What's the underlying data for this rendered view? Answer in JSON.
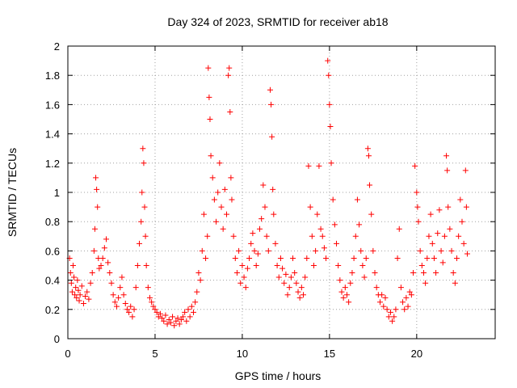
{
  "chart_data": {
    "type": "scatter",
    "title": "Day 324 of 2023, SRMTID for receiver ab18",
    "xlabel": "GPS time / hours",
    "ylabel": "SRMTID / TECUs",
    "xlim": [
      0,
      24.5
    ],
    "ylim": [
      0,
      2
    ],
    "xticks": [
      0,
      5,
      10,
      15,
      20
    ],
    "xtick_labels": [
      "0",
      "5",
      "10",
      "15",
      "20"
    ],
    "yticks": [
      0,
      0.2,
      0.4,
      0.6,
      0.8,
      1.0,
      1.2,
      1.4,
      1.6,
      1.8,
      2.0
    ],
    "ytick_labels": [
      "0",
      "0.2",
      "0.4",
      "0.6",
      "0.8",
      "1",
      "1.2",
      "1.4",
      "1.6",
      "1.8",
      "2"
    ],
    "grid": true,
    "marker": "+",
    "color": "#ff0000",
    "series": [
      {
        "name": "SRMTID",
        "points": [
          [
            0.1,
            0.55
          ],
          [
            0.15,
            0.45
          ],
          [
            0.2,
            0.38
          ],
          [
            0.25,
            0.32
          ],
          [
            0.3,
            0.5
          ],
          [
            0.35,
            0.42
          ],
          [
            0.4,
            0.3
          ],
          [
            0.45,
            0.35
          ],
          [
            0.5,
            0.28
          ],
          [
            0.55,
            0.4
          ],
          [
            0.6,
            0.33
          ],
          [
            0.65,
            0.26
          ],
          [
            0.7,
            0.3
          ],
          [
            0.8,
            0.36
          ],
          [
            0.9,
            0.24
          ],
          [
            1.0,
            0.29
          ],
          [
            1.1,
            0.32
          ],
          [
            1.2,
            0.27
          ],
          [
            1.3,
            0.38
          ],
          [
            1.4,
            0.45
          ],
          [
            1.5,
            0.6
          ],
          [
            1.55,
            0.75
          ],
          [
            1.6,
            1.1
          ],
          [
            1.65,
            1.02
          ],
          [
            1.7,
            0.9
          ],
          [
            1.75,
            0.55
          ],
          [
            1.8,
            0.48
          ],
          [
            1.9,
            0.5
          ],
          [
            2.0,
            0.55
          ],
          [
            2.1,
            0.62
          ],
          [
            2.2,
            0.68
          ],
          [
            2.3,
            0.52
          ],
          [
            2.4,
            0.45
          ],
          [
            2.5,
            0.38
          ],
          [
            2.6,
            0.3
          ],
          [
            2.7,
            0.25
          ],
          [
            2.8,
            0.22
          ],
          [
            2.9,
            0.28
          ],
          [
            3.0,
            0.35
          ],
          [
            3.1,
            0.42
          ],
          [
            3.2,
            0.3
          ],
          [
            3.3,
            0.24
          ],
          [
            3.4,
            0.2
          ],
          [
            3.5,
            0.18
          ],
          [
            3.6,
            0.22
          ],
          [
            3.7,
            0.15
          ],
          [
            3.8,
            0.2
          ],
          [
            3.9,
            0.35
          ],
          [
            4.0,
            0.5
          ],
          [
            4.1,
            0.65
          ],
          [
            4.2,
            0.8
          ],
          [
            4.25,
            1.0
          ],
          [
            4.3,
            1.3
          ],
          [
            4.35,
            1.2
          ],
          [
            4.4,
            0.9
          ],
          [
            4.45,
            0.7
          ],
          [
            4.5,
            0.5
          ],
          [
            4.6,
            0.35
          ],
          [
            4.7,
            0.28
          ],
          [
            4.8,
            0.25
          ],
          [
            4.9,
            0.22
          ],
          [
            5.0,
            0.2
          ],
          [
            5.1,
            0.18
          ],
          [
            5.2,
            0.15
          ],
          [
            5.3,
            0.17
          ],
          [
            5.4,
            0.14
          ],
          [
            5.5,
            0.12
          ],
          [
            5.6,
            0.16
          ],
          [
            5.7,
            0.1
          ],
          [
            5.8,
            0.13
          ],
          [
            5.9,
            0.11
          ],
          [
            6.0,
            0.15
          ],
          [
            6.1,
            0.09
          ],
          [
            6.2,
            0.12
          ],
          [
            6.3,
            0.14
          ],
          [
            6.4,
            0.1
          ],
          [
            6.5,
            0.13
          ],
          [
            6.6,
            0.15
          ],
          [
            6.7,
            0.18
          ],
          [
            6.8,
            0.12
          ],
          [
            6.9,
            0.2
          ],
          [
            7.0,
            0.15
          ],
          [
            7.1,
            0.22
          ],
          [
            7.2,
            0.18
          ],
          [
            7.3,
            0.25
          ],
          [
            7.4,
            0.32
          ],
          [
            7.5,
            0.45
          ],
          [
            7.6,
            0.4
          ],
          [
            7.7,
            0.6
          ],
          [
            7.8,
            0.85
          ],
          [
            7.9,
            0.55
          ],
          [
            8.0,
            0.7
          ],
          [
            8.05,
            1.85
          ],
          [
            8.1,
            1.65
          ],
          [
            8.15,
            1.5
          ],
          [
            8.2,
            1.25
          ],
          [
            8.3,
            1.1
          ],
          [
            8.4,
            0.95
          ],
          [
            8.5,
            0.8
          ],
          [
            8.6,
            1.0
          ],
          [
            8.7,
            1.2
          ],
          [
            8.8,
            0.9
          ],
          [
            8.9,
            0.75
          ],
          [
            9.0,
            1.02
          ],
          [
            9.1,
            0.85
          ],
          [
            9.2,
            1.8
          ],
          [
            9.25,
            1.85
          ],
          [
            9.3,
            1.55
          ],
          [
            9.35,
            1.1
          ],
          [
            9.4,
            0.95
          ],
          [
            9.5,
            0.7
          ],
          [
            9.6,
            0.55
          ],
          [
            9.7,
            0.45
          ],
          [
            9.8,
            0.6
          ],
          [
            9.9,
            0.38
          ],
          [
            10.0,
            0.5
          ],
          [
            10.1,
            0.42
          ],
          [
            10.2,
            0.35
          ],
          [
            10.3,
            0.48
          ],
          [
            10.4,
            0.55
          ],
          [
            10.5,
            0.65
          ],
          [
            10.6,
            0.72
          ],
          [
            10.7,
            0.6
          ],
          [
            10.8,
            0.5
          ],
          [
            10.9,
            0.58
          ],
          [
            11.0,
            0.75
          ],
          [
            11.1,
            0.82
          ],
          [
            11.2,
            1.05
          ],
          [
            11.3,
            0.9
          ],
          [
            11.4,
            0.7
          ],
          [
            11.5,
            0.6
          ],
          [
            11.6,
            1.7
          ],
          [
            11.65,
            1.6
          ],
          [
            11.7,
            1.38
          ],
          [
            11.75,
            1.02
          ],
          [
            11.8,
            0.85
          ],
          [
            11.9,
            0.65
          ],
          [
            12.0,
            0.5
          ],
          [
            12.1,
            0.42
          ],
          [
            12.2,
            0.55
          ],
          [
            12.3,
            0.48
          ],
          [
            12.4,
            0.38
          ],
          [
            12.5,
            0.44
          ],
          [
            12.6,
            0.3
          ],
          [
            12.7,
            0.35
          ],
          [
            12.8,
            0.42
          ],
          [
            12.9,
            0.55
          ],
          [
            13.0,
            0.45
          ],
          [
            13.1,
            0.38
          ],
          [
            13.2,
            0.32
          ],
          [
            13.3,
            0.28
          ],
          [
            13.4,
            0.35
          ],
          [
            13.5,
            0.3
          ],
          [
            13.6,
            0.42
          ],
          [
            13.7,
            0.55
          ],
          [
            13.8,
            1.18
          ],
          [
            13.9,
            0.9
          ],
          [
            14.0,
            0.7
          ],
          [
            14.1,
            0.5
          ],
          [
            14.2,
            0.6
          ],
          [
            14.3,
            0.85
          ],
          [
            14.4,
            1.18
          ],
          [
            14.5,
            0.75
          ],
          [
            14.6,
            0.7
          ],
          [
            14.7,
            0.62
          ],
          [
            14.8,
            0.55
          ],
          [
            14.9,
            1.9
          ],
          [
            14.95,
            1.8
          ],
          [
            15.0,
            1.6
          ],
          [
            15.05,
            1.45
          ],
          [
            15.1,
            1.2
          ],
          [
            15.2,
            0.95
          ],
          [
            15.3,
            0.78
          ],
          [
            15.4,
            0.65
          ],
          [
            15.5,
            0.5
          ],
          [
            15.6,
            0.4
          ],
          [
            15.7,
            0.32
          ],
          [
            15.8,
            0.28
          ],
          [
            15.9,
            0.35
          ],
          [
            16.0,
            0.3
          ],
          [
            16.1,
            0.25
          ],
          [
            16.2,
            0.38
          ],
          [
            16.3,
            0.45
          ],
          [
            16.4,
            0.55
          ],
          [
            16.5,
            0.7
          ],
          [
            16.6,
            0.95
          ],
          [
            16.7,
            0.78
          ],
          [
            16.8,
            0.6
          ],
          [
            16.9,
            0.5
          ],
          [
            17.0,
            0.42
          ],
          [
            17.1,
            0.55
          ],
          [
            17.2,
            1.3
          ],
          [
            17.25,
            1.25
          ],
          [
            17.3,
            1.05
          ],
          [
            17.4,
            0.85
          ],
          [
            17.5,
            0.6
          ],
          [
            17.6,
            0.45
          ],
          [
            17.7,
            0.35
          ],
          [
            17.8,
            0.3
          ],
          [
            17.9,
            0.25
          ],
          [
            18.0,
            0.3
          ],
          [
            18.1,
            0.22
          ],
          [
            18.2,
            0.28
          ],
          [
            18.3,
            0.2
          ],
          [
            18.4,
            0.15
          ],
          [
            18.5,
            0.18
          ],
          [
            18.6,
            0.12
          ],
          [
            18.7,
            0.15
          ],
          [
            18.8,
            0.2
          ],
          [
            18.9,
            0.55
          ],
          [
            19.0,
            0.75
          ],
          [
            19.1,
            0.35
          ],
          [
            19.2,
            0.25
          ],
          [
            19.3,
            0.2
          ],
          [
            19.4,
            0.28
          ],
          [
            19.5,
            0.22
          ],
          [
            19.6,
            0.32
          ],
          [
            19.7,
            0.3
          ],
          [
            19.8,
            0.45
          ],
          [
            19.9,
            1.18
          ],
          [
            20.0,
            1.0
          ],
          [
            20.05,
            0.9
          ],
          [
            20.1,
            0.8
          ],
          [
            20.2,
            0.6
          ],
          [
            20.3,
            0.5
          ],
          [
            20.4,
            0.45
          ],
          [
            20.5,
            0.38
          ],
          [
            20.6,
            0.55
          ],
          [
            20.7,
            0.7
          ],
          [
            20.8,
            0.85
          ],
          [
            20.9,
            0.65
          ],
          [
            21.0,
            0.55
          ],
          [
            21.1,
            0.45
          ],
          [
            21.2,
            0.72
          ],
          [
            21.3,
            0.88
          ],
          [
            21.4,
            0.6
          ],
          [
            21.5,
            0.52
          ],
          [
            21.6,
            0.7
          ],
          [
            21.7,
            1.25
          ],
          [
            21.75,
            1.15
          ],
          [
            21.8,
            0.9
          ],
          [
            21.9,
            0.75
          ],
          [
            22.0,
            0.6
          ],
          [
            22.1,
            0.45
          ],
          [
            22.2,
            0.38
          ],
          [
            22.3,
            0.55
          ],
          [
            22.4,
            0.7
          ],
          [
            22.5,
            0.95
          ],
          [
            22.6,
            0.8
          ],
          [
            22.7,
            0.65
          ],
          [
            22.8,
            1.15
          ],
          [
            22.85,
            0.9
          ],
          [
            22.9,
            0.58
          ]
        ]
      }
    ]
  }
}
